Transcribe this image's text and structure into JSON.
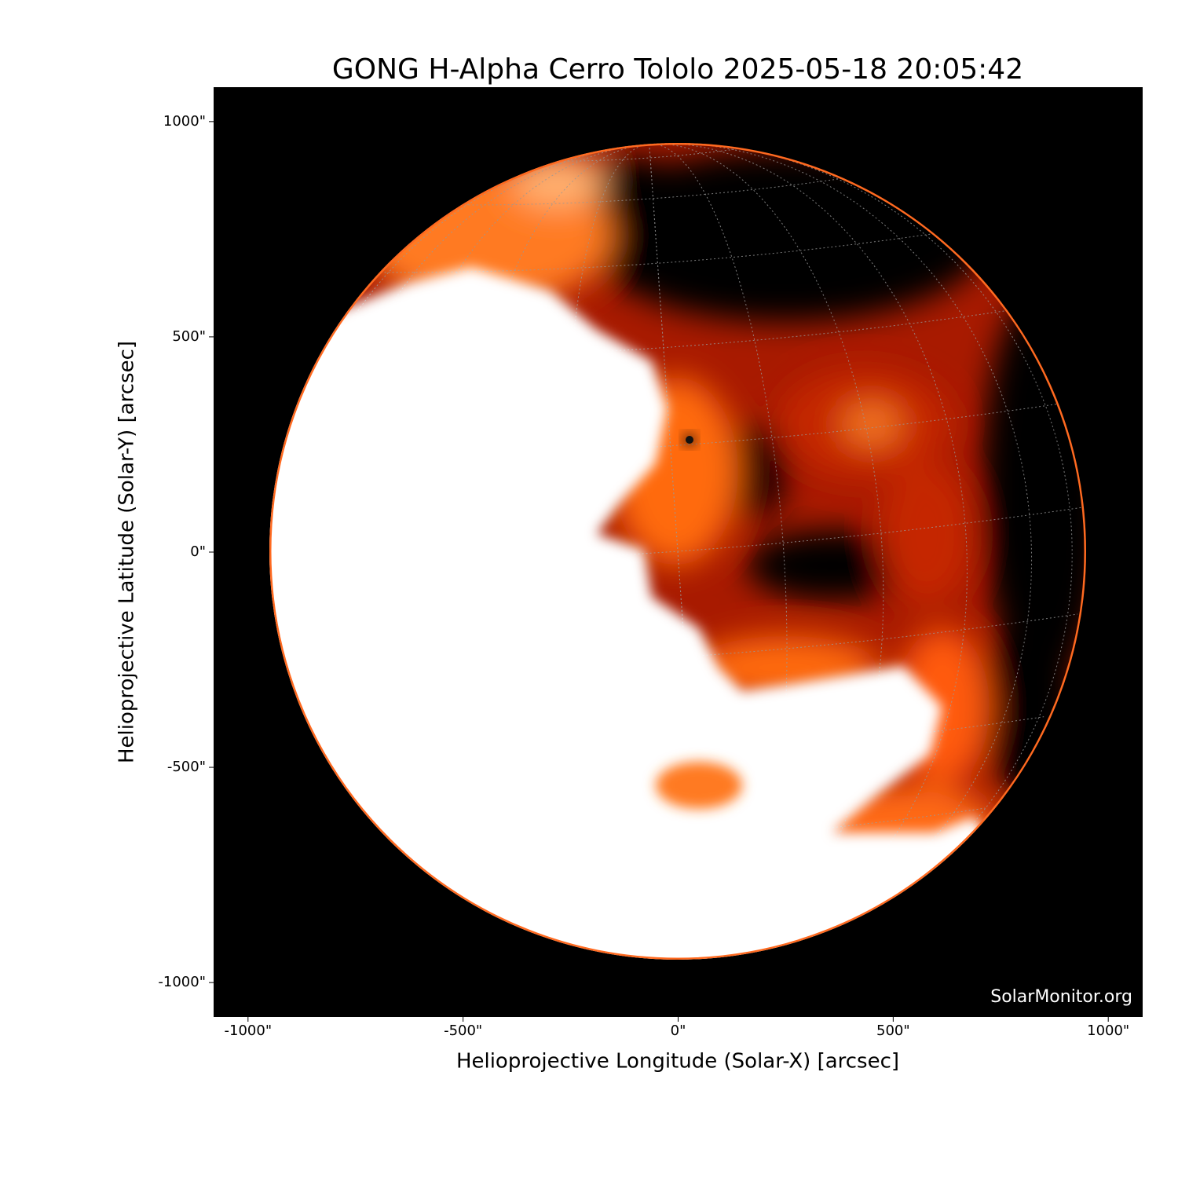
{
  "chart_data": {
    "type": "image",
    "title": "GONG H-Alpha Cerro Tololo 2025-05-18 20:05:42",
    "xlabel": "Helioprojective Longitude (Solar-X) [arcsec]",
    "ylabel": "Helioprojective Latitude (Solar-Y) [arcsec]",
    "watermark": "SolarMonitor.org",
    "xlim": [
      -1080,
      1080
    ],
    "ylim": [
      -1080,
      1080
    ],
    "xticks": [
      {
        "value": -1000,
        "label": "-1000\""
      },
      {
        "value": -500,
        "label": "-500\""
      },
      {
        "value": 0,
        "label": "0\""
      },
      {
        "value": 500,
        "label": "500\""
      },
      {
        "value": 1000,
        "label": "1000\""
      }
    ],
    "yticks": [
      {
        "value": -1000,
        "label": "-1000\""
      },
      {
        "value": -500,
        "label": "-500\""
      },
      {
        "value": 0,
        "label": "0\""
      },
      {
        "value": 500,
        "label": "500\""
      },
      {
        "value": 1000,
        "label": "1000\""
      }
    ],
    "grid": true
  }
}
